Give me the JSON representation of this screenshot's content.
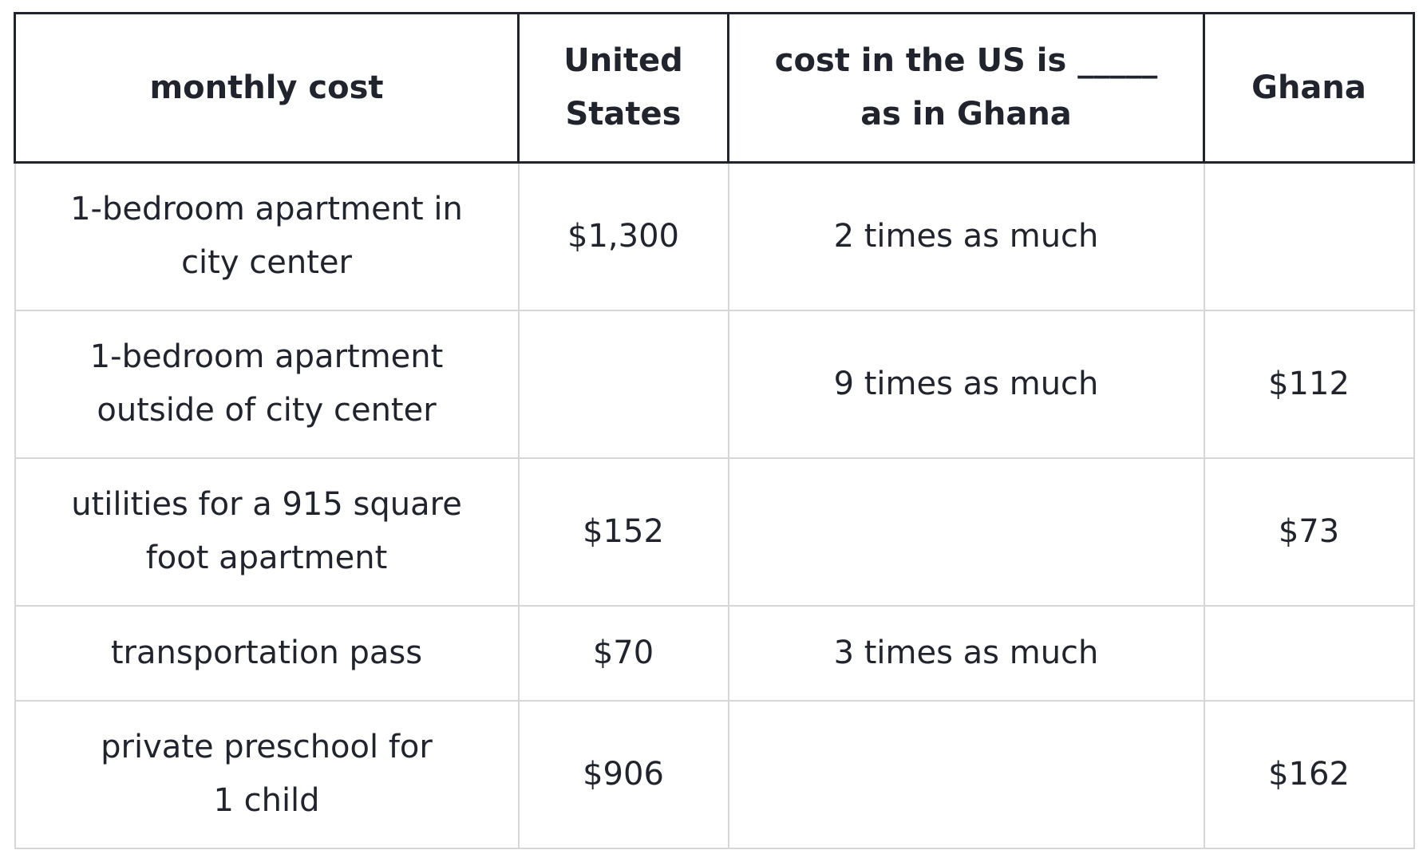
{
  "table": {
    "headers": [
      "monthly cost",
      "United States",
      "cost in the US is _____ as in Ghana",
      "Ghana"
    ],
    "rows": [
      {
        "item": "1-bedroom apartment in city center",
        "us": "$1,300",
        "ratio": "2 times as much",
        "ghana": ""
      },
      {
        "item": "1-bedroom apartment outside of city center",
        "us": "",
        "ratio": "9 times as much",
        "ghana": "$112"
      },
      {
        "item": "utilities for a 915 square foot apartment",
        "us": "$152",
        "ratio": "",
        "ghana": "$73"
      },
      {
        "item": "transportation pass",
        "us": "$70",
        "ratio": "3 times as much",
        "ghana": ""
      },
      {
        "item": "private preschool for 1 child",
        "us": "$906",
        "ratio": "",
        "ghana": "$162"
      }
    ]
  }
}
